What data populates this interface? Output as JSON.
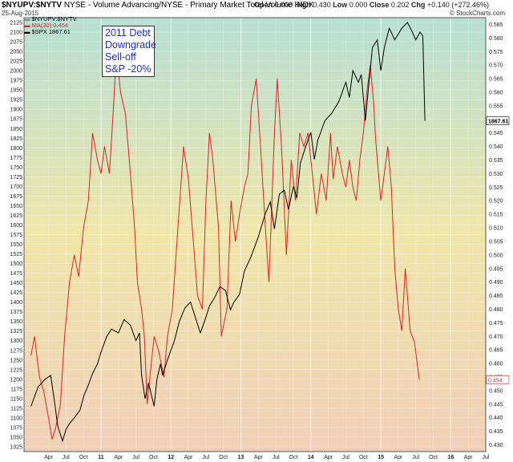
{
  "header": {
    "symbol": "$NYUPV:$NYTV",
    "description": "NYSE - Volume Advancing/NYSE - Primary Market Total Volume INDX",
    "date": "25-Aug-2015",
    "open_label": "Open",
    "open": "0.000",
    "high_label": "High",
    "high": "0.430",
    "low_label": "Low",
    "low": "0.000",
    "close_label": "Close",
    "close": "0.202",
    "chg_label": "Chg",
    "chg": "+0.140 (+272.46%)",
    "copyright": "© StockCharts.com"
  },
  "legend": {
    "item1": "$NYUPV:$NYTV",
    "item2": "MA(30) 0.454",
    "item3": "$SPX 1867.61"
  },
  "annotation": [
    "2011 Debt",
    "Downgrade",
    "Sell-off",
    "S&P -20%"
  ],
  "colors": {
    "spx": "#000000",
    "ma": "#dd2222",
    "bg_top": "#b6dfd4",
    "bg_mid": "#f0e6a8",
    "bg_bottom": "#f0cfb8",
    "annot_text": "#1c2cd9"
  },
  "chart_data": {
    "type": "line",
    "title": "$NYUPV:$NYTV",
    "xlabel": "",
    "ylabel": "",
    "x_tick_labels": [
      "Apr",
      "Jul",
      "Oct",
      "11",
      "Apr",
      "Jul",
      "Oct",
      "12",
      "Apr",
      "Jul",
      "Oct",
      "13",
      "Apr",
      "Jul",
      "Oct",
      "14",
      "Apr",
      "Jul",
      "Oct",
      "15",
      "Apr",
      "Jul",
      "Oct",
      "16",
      "Apr",
      "Jul"
    ],
    "left_axis": {
      "ylim": [
        1012.5,
        2137.5
      ],
      "ticks": [
        1025,
        1050,
        1075,
        1100,
        1125,
        1150,
        1175,
        1200,
        1225,
        1250,
        1275,
        1300,
        1325,
        1350,
        1375,
        1400,
        1425,
        1450,
        1475,
        1500,
        1525,
        1550,
        1575,
        1600,
        1625,
        1650,
        1675,
        1700,
        1725,
        1750,
        1775,
        1800,
        1825,
        1850,
        1875,
        1900,
        1925,
        1950,
        1975,
        2000,
        2025,
        2050,
        2075,
        2100,
        2125
      ]
    },
    "right_axis": {
      "ylim": [
        0.4275,
        0.5875
      ],
      "ticks": [
        0.43,
        0.435,
        0.44,
        0.445,
        0.45,
        0.455,
        0.46,
        0.465,
        0.47,
        0.475,
        0.48,
        0.485,
        0.49,
        0.495,
        0.5,
        0.505,
        0.51,
        0.515,
        0.52,
        0.525,
        0.53,
        0.535,
        0.54,
        0.545,
        0.55,
        0.555,
        0.56,
        0.565,
        0.57,
        0.575,
        0.58,
        0.585
      ]
    },
    "last_values": {
      "spx": "1867.61",
      "ma": "0.454"
    },
    "series": [
      {
        "name": "$SPX",
        "axis": "left",
        "points": [
          [
            2010.0,
            1130
          ],
          [
            2010.1,
            1180
          ],
          [
            2010.2,
            1200
          ],
          [
            2010.28,
            1210
          ],
          [
            2010.33,
            1150
          ],
          [
            2010.38,
            1080
          ],
          [
            2010.45,
            1040
          ],
          [
            2010.5,
            1070
          ],
          [
            2010.55,
            1085
          ],
          [
            2010.62,
            1100
          ],
          [
            2010.7,
            1120
          ],
          [
            2010.76,
            1160
          ],
          [
            2010.82,
            1185
          ],
          [
            2010.88,
            1215
          ],
          [
            2010.95,
            1240
          ],
          [
            2011.0,
            1270
          ],
          [
            2011.08,
            1310
          ],
          [
            2011.15,
            1330
          ],
          [
            2011.25,
            1320
          ],
          [
            2011.33,
            1355
          ],
          [
            2011.42,
            1340
          ],
          [
            2011.5,
            1300
          ],
          [
            2011.55,
            1320
          ],
          [
            2011.58,
            1210
          ],
          [
            2011.63,
            1150
          ],
          [
            2011.68,
            1190
          ],
          [
            2011.72,
            1160
          ],
          [
            2011.76,
            1130
          ],
          [
            2011.8,
            1200
          ],
          [
            2011.85,
            1240
          ],
          [
            2011.88,
            1210
          ],
          [
            2011.95,
            1250
          ],
          [
            2012.05,
            1300
          ],
          [
            2012.12,
            1350
          ],
          [
            2012.2,
            1385
          ],
          [
            2012.28,
            1400
          ],
          [
            2012.35,
            1360
          ],
          [
            2012.42,
            1320
          ],
          [
            2012.48,
            1350
          ],
          [
            2012.55,
            1390
          ],
          [
            2012.62,
            1410
          ],
          [
            2012.7,
            1440
          ],
          [
            2012.78,
            1430
          ],
          [
            2012.85,
            1380
          ],
          [
            2012.9,
            1400
          ],
          [
            2012.98,
            1420
          ],
          [
            2013.05,
            1480
          ],
          [
            2013.15,
            1520
          ],
          [
            2013.25,
            1570
          ],
          [
            2013.35,
            1630
          ],
          [
            2013.42,
            1660
          ],
          [
            2013.48,
            1590
          ],
          [
            2013.55,
            1680
          ],
          [
            2013.62,
            1690
          ],
          [
            2013.68,
            1640
          ],
          [
            2013.75,
            1700
          ],
          [
            2013.8,
            1670
          ],
          [
            2013.85,
            1760
          ],
          [
            2013.92,
            1800
          ],
          [
            2014.0,
            1840
          ],
          [
            2014.05,
            1770
          ],
          [
            2014.1,
            1820
          ],
          [
            2014.2,
            1870
          ],
          [
            2014.3,
            1890
          ],
          [
            2014.4,
            1920
          ],
          [
            2014.5,
            1970
          ],
          [
            2014.55,
            1930
          ],
          [
            2014.6,
            2000
          ],
          [
            2014.68,
            1970
          ],
          [
            2014.72,
            1990
          ],
          [
            2014.78,
            1870
          ],
          [
            2014.82,
            1950
          ],
          [
            2014.88,
            2060
          ],
          [
            2014.95,
            2080
          ],
          [
            2015.0,
            2000
          ],
          [
            2015.05,
            2060
          ],
          [
            2015.12,
            2110
          ],
          [
            2015.2,
            2080
          ],
          [
            2015.3,
            2110
          ],
          [
            2015.38,
            2125
          ],
          [
            2015.45,
            2100
          ],
          [
            2015.5,
            2080
          ],
          [
            2015.56,
            2100
          ],
          [
            2015.6,
            2090
          ],
          [
            2015.63,
            1870
          ]
        ]
      },
      {
        "name": "MA(30)",
        "axis": "right",
        "points": [
          [
            2010.0,
            0.463
          ],
          [
            2010.05,
            0.47
          ],
          [
            2010.12,
            0.455
          ],
          [
            2010.18,
            0.45
          ],
          [
            2010.25,
            0.44
          ],
          [
            2010.3,
            0.432
          ],
          [
            2010.35,
            0.436
          ],
          [
            2010.42,
            0.445
          ],
          [
            2010.48,
            0.47
          ],
          [
            2010.55,
            0.49
          ],
          [
            2010.62,
            0.5
          ],
          [
            2010.68,
            0.492
          ],
          [
            2010.75,
            0.51
          ],
          [
            2010.82,
            0.52
          ],
          [
            2010.88,
            0.545
          ],
          [
            2010.95,
            0.535
          ],
          [
            2011.0,
            0.53
          ],
          [
            2011.05,
            0.54
          ],
          [
            2011.12,
            0.53
          ],
          [
            2011.18,
            0.555
          ],
          [
            2011.22,
            0.575
          ],
          [
            2011.28,
            0.56
          ],
          [
            2011.35,
            0.552
          ],
          [
            2011.42,
            0.53
          ],
          [
            2011.48,
            0.51
          ],
          [
            2011.52,
            0.49
          ],
          [
            2011.58,
            0.48
          ],
          [
            2011.62,
            0.47
          ],
          [
            2011.66,
            0.445
          ],
          [
            2011.72,
            0.46
          ],
          [
            2011.76,
            0.47
          ],
          [
            2011.82,
            0.465
          ],
          [
            2011.9,
            0.455
          ],
          [
            2011.95,
            0.47
          ],
          [
            2012.02,
            0.48
          ],
          [
            2012.1,
            0.51
          ],
          [
            2012.18,
            0.54
          ],
          [
            2012.25,
            0.528
          ],
          [
            2012.32,
            0.505
          ],
          [
            2012.38,
            0.485
          ],
          [
            2012.45,
            0.48
          ],
          [
            2012.5,
            0.52
          ],
          [
            2012.55,
            0.545
          ],
          [
            2012.6,
            0.535
          ],
          [
            2012.68,
            0.51
          ],
          [
            2012.72,
            0.47
          ],
          [
            2012.8,
            0.48
          ],
          [
            2012.86,
            0.52
          ],
          [
            2012.92,
            0.505
          ],
          [
            2012.98,
            0.515
          ],
          [
            2013.05,
            0.525
          ],
          [
            2013.1,
            0.53
          ],
          [
            2013.15,
            0.555
          ],
          [
            2013.22,
            0.565
          ],
          [
            2013.28,
            0.54
          ],
          [
            2013.35,
            0.51
          ],
          [
            2013.4,
            0.49
          ],
          [
            2013.48,
            0.545
          ],
          [
            2013.52,
            0.565
          ],
          [
            2013.58,
            0.54
          ],
          [
            2013.65,
            0.5
          ],
          [
            2013.72,
            0.535
          ],
          [
            2013.78,
            0.52
          ],
          [
            2013.84,
            0.545
          ],
          [
            2013.9,
            0.54
          ],
          [
            2013.96,
            0.545
          ],
          [
            2014.02,
            0.53
          ],
          [
            2014.08,
            0.515
          ],
          [
            2014.15,
            0.53
          ],
          [
            2014.22,
            0.52
          ],
          [
            2014.28,
            0.545
          ],
          [
            2014.32,
            0.528
          ],
          [
            2014.38,
            0.54
          ],
          [
            2014.45,
            0.53
          ],
          [
            2014.5,
            0.525
          ],
          [
            2014.55,
            0.535
          ],
          [
            2014.6,
            0.525
          ],
          [
            2014.65,
            0.52
          ],
          [
            2014.7,
            0.535
          ],
          [
            2014.75,
            0.545
          ],
          [
            2014.8,
            0.56
          ],
          [
            2014.85,
            0.57
          ],
          [
            2014.9,
            0.555
          ],
          [
            2014.92,
            0.545
          ],
          [
            2014.95,
            0.535
          ],
          [
            2015.0,
            0.52
          ],
          [
            2015.05,
            0.53
          ],
          [
            2015.1,
            0.54
          ],
          [
            2015.15,
            0.525
          ],
          [
            2015.2,
            0.495
          ],
          [
            2015.25,
            0.48
          ],
          [
            2015.3,
            0.472
          ],
          [
            2015.35,
            0.495
          ],
          [
            2015.42,
            0.472
          ],
          [
            2015.48,
            0.468
          ],
          [
            2015.55,
            0.454
          ]
        ]
      }
    ]
  }
}
